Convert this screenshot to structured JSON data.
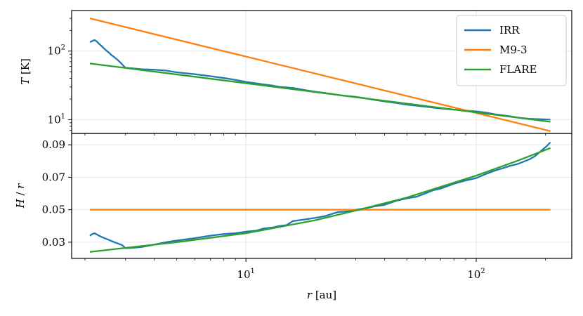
{
  "chart_data": [
    {
      "type": "line",
      "panel": "top",
      "ylabel_var": "T",
      "ylabel_unit": " [K]",
      "xscale": "log",
      "yscale": "log",
      "xlim": [
        1.75,
        260
      ],
      "ylim": [
        6.3,
        390
      ],
      "grid": true,
      "legend": "top-right",
      "x_ticks": [
        10,
        100
      ],
      "y_ticks": [
        10,
        100
      ],
      "y_tick_labels": [
        {
          "base": "10",
          "exp": "1"
        },
        {
          "base": "10",
          "exp": "2"
        }
      ],
      "series": [
        {
          "name": "IRR",
          "color": "#1f77b4",
          "x": [
            2.1,
            2.15,
            2.2,
            2.25,
            2.3,
            2.35,
            2.4,
            2.45,
            2.5,
            2.55,
            2.6,
            2.65,
            2.7,
            2.75,
            2.8,
            2.85,
            2.9,
            2.95,
            3.0,
            3.2,
            3.5,
            4,
            4.5,
            5,
            6,
            7,
            8,
            9,
            10,
            11,
            12,
            13,
            14,
            15,
            16,
            17,
            18,
            20,
            22,
            24,
            26,
            28,
            30,
            33,
            36,
            40,
            45,
            50,
            55,
            60,
            65,
            70,
            80,
            90,
            100,
            110,
            120,
            130,
            140,
            150,
            160,
            170,
            180,
            200,
            210
          ],
          "y": [
            135,
            140,
            145,
            138,
            128,
            120,
            112,
            105,
            99,
            94,
            88,
            84,
            80,
            76,
            72,
            68,
            64,
            60,
            57,
            56,
            54.5,
            53.5,
            52,
            49,
            46,
            43,
            40.5,
            38,
            35.5,
            34,
            32.5,
            31.5,
            30,
            29.5,
            29,
            28,
            27,
            25.5,
            24.5,
            23.5,
            22.5,
            22,
            21.5,
            20.5,
            19.5,
            18.5,
            17.5,
            16.5,
            16,
            15.5,
            15,
            14.6,
            14,
            13.6,
            13.2,
            12.7,
            12,
            11.6,
            11.2,
            10.8,
            10.5,
            10.3,
            10.2,
            10.1,
            10
          ]
        },
        {
          "name": "M9-3",
          "color": "#ff7f0e",
          "x": [
            2.1,
            210
          ],
          "y": [
            300,
            6.8
          ]
        },
        {
          "name": "FLARE",
          "color": "#2ca02c",
          "x": [
            2.1,
            210
          ],
          "y": [
            66,
            9.3
          ]
        }
      ]
    },
    {
      "type": "line",
      "panel": "bottom",
      "ylabel_num": "H",
      "ylabel_sep": " / ",
      "ylabel_den": "r",
      "xlabel_var": "r",
      "xlabel_unit": " [au]",
      "xscale": "log",
      "yscale": "linear",
      "xlim": [
        1.75,
        260
      ],
      "ylim": [
        0.02,
        0.097
      ],
      "grid": true,
      "x_ticks": [
        10,
        100
      ],
      "x_tick_labels": [
        {
          "base": "10",
          "exp": "1"
        },
        {
          "base": "10",
          "exp": "2"
        }
      ],
      "y_ticks": [
        0.03,
        0.05,
        0.07,
        0.09
      ],
      "y_tick_labels": [
        "0.03",
        "0.05",
        "0.07",
        "0.09"
      ],
      "series": [
        {
          "name": "IRR",
          "color": "#1f77b4",
          "x": [
            2.1,
            2.15,
            2.2,
            2.25,
            2.3,
            2.4,
            2.5,
            2.6,
            2.7,
            2.8,
            2.9,
            3.0,
            3.2,
            3.5,
            4,
            4.5,
            5,
            6,
            7,
            8,
            9,
            10,
            11,
            12,
            13,
            14,
            15,
            16,
            18,
            20,
            22,
            25,
            28,
            30,
            33,
            36,
            40,
            45,
            50,
            55,
            60,
            65,
            70,
            80,
            90,
            100,
            110,
            120,
            130,
            140,
            150,
            160,
            170,
            180,
            200,
            210
          ],
          "y": [
            0.034,
            0.035,
            0.0355,
            0.0348,
            0.034,
            0.0328,
            0.0318,
            0.0308,
            0.0298,
            0.029,
            0.0282,
            0.0263,
            0.0265,
            0.027,
            0.0285,
            0.03,
            0.031,
            0.0325,
            0.034,
            0.035,
            0.0355,
            0.0365,
            0.037,
            0.0385,
            0.039,
            0.04,
            0.0405,
            0.043,
            0.044,
            0.045,
            0.046,
            0.0485,
            0.049,
            0.05,
            0.0508,
            0.052,
            0.053,
            0.0555,
            0.057,
            0.058,
            0.06,
            0.062,
            0.063,
            0.066,
            0.068,
            0.0695,
            0.072,
            0.074,
            0.0755,
            0.077,
            0.078,
            0.0795,
            0.081,
            0.083,
            0.0885,
            0.0915
          ]
        },
        {
          "name": "M9-3",
          "color": "#ff7f0e",
          "x": [
            2.1,
            210
          ],
          "y": [
            0.05,
            0.05
          ]
        },
        {
          "name": "FLARE",
          "color": "#2ca02c",
          "x": [
            2.1,
            3,
            5,
            10,
            20,
            30,
            50,
            100,
            150,
            210
          ],
          "y": [
            0.024,
            0.0265,
            0.03,
            0.0355,
            0.0435,
            0.0495,
            0.0575,
            0.071,
            0.08,
            0.088
          ]
        }
      ]
    }
  ]
}
